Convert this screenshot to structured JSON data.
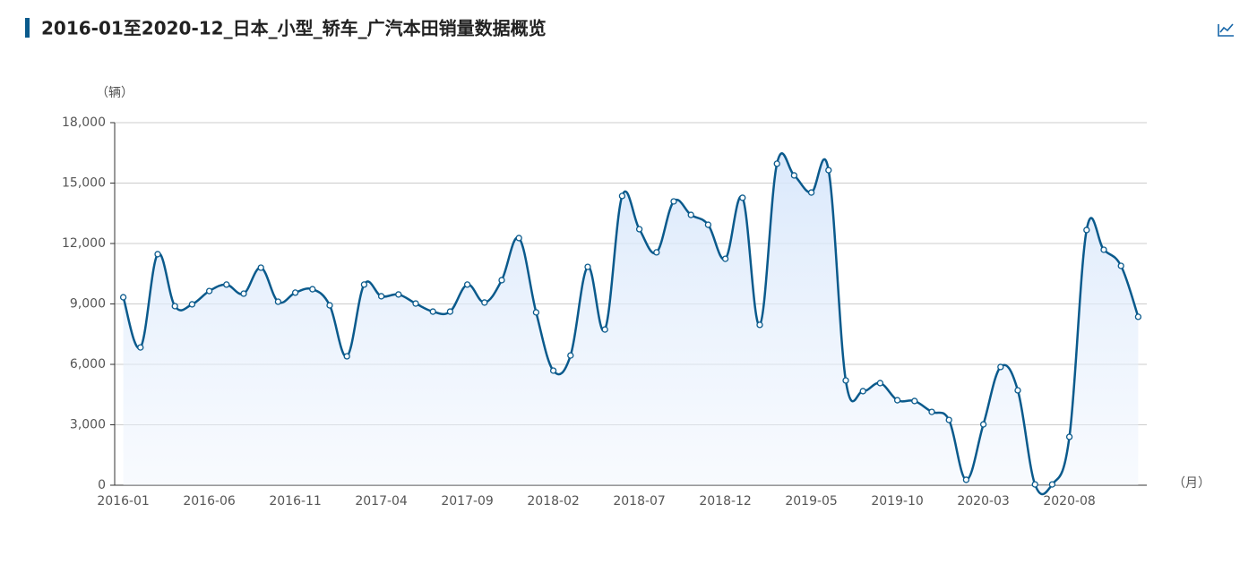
{
  "chart_data": {
    "type": "line",
    "title": "2016-01至2020-12_日本_小型_轿车_广汽本田销量数据概览",
    "y_label": "（辆）",
    "x_label": "（月）",
    "categories": [
      "2016-01",
      null,
      null,
      null,
      null,
      "2016-06",
      null,
      null,
      null,
      null,
      "2016-11",
      null,
      null,
      null,
      null,
      "2017-04",
      null,
      null,
      null,
      null,
      "2017-09",
      null,
      null,
      null,
      null,
      "2018-02",
      null,
      null,
      null,
      null,
      "2018-07",
      null,
      null,
      null,
      null,
      "2018-12",
      null,
      null,
      null,
      null,
      "2019-05",
      null,
      null,
      null,
      null,
      "2019-10",
      null,
      null,
      null,
      null,
      "2020-03",
      null,
      null,
      null,
      null,
      "2020-08",
      null,
      null,
      null,
      null
    ],
    "series": [
      {
        "color": "#0a5a8c",
        "values": [
          9330,
          6840,
          11470,
          8890,
          8980,
          9640,
          9960,
          9510,
          10800,
          9110,
          9560,
          9730,
          8930,
          6400,
          9960,
          9380,
          9470,
          9020,
          8620,
          8620,
          9960,
          9070,
          10180,
          12270,
          8580,
          5690,
          6440,
          10840,
          7730,
          14360,
          12710,
          11560,
          14090,
          13420,
          12930,
          11240,
          14270,
          7960,
          15960,
          15380,
          14530,
          15640,
          5200,
          4670,
          5070,
          4220,
          4180,
          3640,
          3240,
          270,
          3020,
          5870,
          4710,
          40,
          40,
          2400,
          12670,
          11690,
          10890,
          8360
        ]
      }
    ],
    "ylim": [
      0,
      18000
    ],
    "yticks": [
      0,
      {
        "value": 3000,
        "label": "3,000"
      },
      {
        "value": 6000,
        "label": "6,000"
      },
      {
        "value": 9000,
        "label": "9,000"
      },
      {
        "value": 12000,
        "label": "12,000"
      },
      {
        "value": 15000,
        "label": "15,000"
      },
      {
        "value": 18000,
        "label": "18,000"
      }
    ],
    "grid": true,
    "smooth": true
  }
}
